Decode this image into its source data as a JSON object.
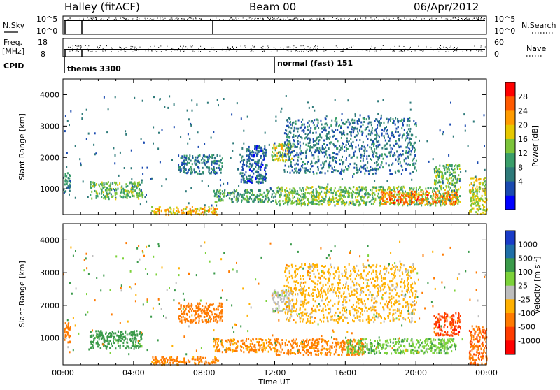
{
  "header": {
    "station": "Halley (fitACF)",
    "beam": "Beam 00",
    "date": "06/Apr/2012"
  },
  "top_panels": {
    "nsky_label": "N.Sky",
    "nsky_ticks": [
      "10^5",
      "10^0"
    ],
    "nsearch_label": "N.Search",
    "nsearch_ticks": [
      "10^5",
      "10^0"
    ],
    "freq_label_1": "Freq.",
    "freq_label_2": "[MHz]",
    "freq_ticks": [
      "18",
      "8"
    ],
    "nave_label": "Nave",
    "nave_ticks": [
      "60",
      "0"
    ],
    "cpid_label": "CPID",
    "cpid_segments": [
      {
        "start_hour": 0.0,
        "label": "themis 3300"
      },
      {
        "start_hour": 12.0,
        "label": "normal (fast) 151"
      }
    ]
  },
  "chart_data": [
    {
      "type": "heatmap",
      "title": "",
      "ylabel": "Slant Range [km]",
      "xlabel": "",
      "xlim": [
        0,
        24
      ],
      "ylim": [
        180,
        4500
      ],
      "yticks": [
        1000,
        2000,
        3000,
        4000
      ],
      "colorbar": {
        "label": "Power [dB]",
        "ticks": [
          "28",
          "24",
          "20",
          "16",
          "12",
          "8",
          "4"
        ],
        "colors": [
          "#ff0000",
          "#ff5a00",
          "#ff9b00",
          "#e6c800",
          "#7cc43a",
          "#3a9e6a",
          "#2e7a7a",
          "#1a4ab0",
          "#0000ff"
        ]
      },
      "echo_regions": [
        {
          "t0": 0.0,
          "t1": 0.4,
          "r0": 850,
          "r1": 1600,
          "value": 10
        },
        {
          "t0": 1.5,
          "t1": 4.5,
          "r0": 700,
          "r1": 1250,
          "value": 14
        },
        {
          "t0": 5.0,
          "t1": 8.8,
          "r0": 200,
          "r1": 450,
          "value": 22
        },
        {
          "t0": 6.5,
          "t1": 9.0,
          "r0": 1500,
          "r1": 2100,
          "value": 8
        },
        {
          "t0": 8.5,
          "t1": 12.0,
          "r0": 600,
          "r1": 1000,
          "value": 12
        },
        {
          "t0": 10.0,
          "t1": 11.5,
          "r0": 1200,
          "r1": 2400,
          "value": 6
        },
        {
          "t0": 11.8,
          "t1": 13.0,
          "r0": 1900,
          "r1": 2500,
          "value": 18
        },
        {
          "t0": 12.5,
          "t1": 20.0,
          "r0": 1500,
          "r1": 3300,
          "value": 7
        },
        {
          "t0": 12.0,
          "t1": 22.5,
          "r0": 500,
          "r1": 1100,
          "value": 15
        },
        {
          "t0": 18.0,
          "t1": 22.3,
          "r0": 550,
          "r1": 950,
          "value": 26
        },
        {
          "t0": 21.0,
          "t1": 22.5,
          "r0": 1100,
          "r1": 1800,
          "value": 14
        },
        {
          "t0": 23.0,
          "t1": 24.0,
          "r0": 200,
          "r1": 1400,
          "value": 18
        }
      ]
    },
    {
      "type": "heatmap",
      "title": "",
      "ylabel": "Slant Range [km]",
      "xlabel": "Time UT",
      "xlim": [
        0,
        24
      ],
      "ylim": [
        180,
        4500
      ],
      "yticks": [
        1000,
        2000,
        3000,
        4000
      ],
      "xticks": [
        "00:00",
        "04:00",
        "08:00",
        "12:00",
        "16:00",
        "20:00",
        "00:00"
      ],
      "colorbar": {
        "label": "Velocity [m s^-1]",
        "ticks": [
          "1000",
          "500",
          "100",
          "25",
          "-25",
          "-100",
          "-500",
          "-1000"
        ],
        "colors": [
          "#1a3cc8",
          "#1f6fa8",
          "#3a9a4a",
          "#7cd23a",
          "#bdbdbd",
          "#ffb000",
          "#ff7a00",
          "#ff3c00",
          "#ff0000"
        ]
      },
      "echo_regions": [
        {
          "t0": 0.0,
          "t1": 0.4,
          "r0": 850,
          "r1": 1500,
          "value": -300
        },
        {
          "t0": 1.5,
          "t1": 4.5,
          "r0": 700,
          "r1": 1250,
          "value": 200
        },
        {
          "t0": 5.0,
          "t1": 8.8,
          "r0": 200,
          "r1": 450,
          "value": -150
        },
        {
          "t0": 6.5,
          "t1": 9.0,
          "r0": 1500,
          "r1": 2100,
          "value": -300
        },
        {
          "t0": 8.5,
          "t1": 12.0,
          "r0": 600,
          "r1": 1000,
          "value": -120
        },
        {
          "t0": 11.8,
          "t1": 13.0,
          "r0": 1800,
          "r1": 2500,
          "value": 0
        },
        {
          "t0": 12.5,
          "t1": 20.0,
          "r0": 1500,
          "r1": 3300,
          "value": -50
        },
        {
          "t0": 12.0,
          "t1": 17.0,
          "r0": 500,
          "r1": 1000,
          "value": -150
        },
        {
          "t0": 16.0,
          "t1": 22.3,
          "r0": 550,
          "r1": 1000,
          "value": 80
        },
        {
          "t0": 21.0,
          "t1": 22.5,
          "r0": 1100,
          "r1": 1800,
          "value": -700
        },
        {
          "t0": 23.0,
          "t1": 24.0,
          "r0": 200,
          "r1": 1400,
          "value": -400
        }
      ]
    }
  ]
}
